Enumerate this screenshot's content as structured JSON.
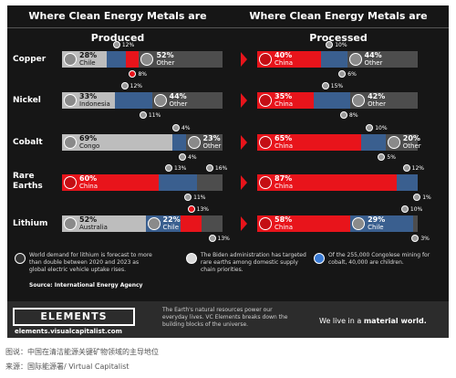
{
  "headers": {
    "produced": "Where Clean Energy Metals are Produced",
    "processed": "Where Clean Energy Metals are Processed"
  },
  "colors": {
    "china": "#e8141b",
    "other": "#4d4d4d",
    "highlight": "#bdbdbd",
    "blue": "#3a5f8f",
    "background": "#161616"
  },
  "chart_data": [
    {
      "type": "bar",
      "orientation": "horizontal",
      "stacked": true,
      "title": "Where Clean Energy Metals are Produced",
      "categories": [
        "Copper",
        "Nickel",
        "Cobalt",
        "Rare Earths",
        "Lithium"
      ],
      "rows": [
        {
          "metal": "Copper",
          "segments": [
            {
              "country": "Chile",
              "pct": 28,
              "fill": "gray",
              "flag": "chile-flag"
            },
            {
              "country": "Peru",
              "pct": 12,
              "fill": "blue",
              "flag": "peru-flag"
            },
            {
              "country": "China",
              "pct": 8,
              "fill": "red",
              "flag": "china-flag"
            },
            {
              "country": "Other",
              "pct": 52,
              "fill": "dark",
              "flag": "other-icon"
            }
          ]
        },
        {
          "metal": "Nickel",
          "segments": [
            {
              "country": "Indonesia",
              "pct": 33,
              "fill": "gray",
              "flag": "indonesia-flag"
            },
            {
              "country": "Philippines",
              "pct": 12,
              "fill": "blue",
              "flag": "philippines-flag"
            },
            {
              "country": "Russia",
              "pct": 11,
              "fill": "blue",
              "flag": "russia-flag"
            },
            {
              "country": "Other",
              "pct": 44,
              "fill": "dark",
              "flag": "other-icon"
            }
          ]
        },
        {
          "metal": "Cobalt",
          "segments": [
            {
              "country": "Congo",
              "pct": 69,
              "fill": "gray",
              "flag": "congo-flag"
            },
            {
              "country": "Russia",
              "pct": 4,
              "fill": "blue",
              "flag": "russia-flag"
            },
            {
              "country": "Australia",
              "pct": 4,
              "fill": "blue",
              "flag": "australia-flag"
            },
            {
              "country": "Other",
              "pct": 23,
              "fill": "dark",
              "flag": "other-icon"
            }
          ]
        },
        {
          "metal": "Rare Earths",
          "segments": [
            {
              "country": "China",
              "pct": 60,
              "fill": "red",
              "flag": "china-flag"
            },
            {
              "country": "U.S.",
              "pct": 13,
              "fill": "blue",
              "flag": "us-flag"
            },
            {
              "country": "Myanmar",
              "pct": 11,
              "fill": "blue",
              "flag": "myanmar-flag"
            },
            {
              "country": "Other",
              "pct": 16,
              "fill": "dark",
              "flag": "other-icon"
            }
          ]
        },
        {
          "metal": "Lithium",
          "segments": [
            {
              "country": "Australia",
              "pct": 52,
              "fill": "gray",
              "flag": "australia-flag"
            },
            {
              "country": "Chile",
              "pct": 22,
              "fill": "blue",
              "flag": "chile-flag"
            },
            {
              "country": "China",
              "pct": 13,
              "fill": "red",
              "flag": "china-flag"
            },
            {
              "country": "Other",
              "pct": 13,
              "fill": "dark",
              "flag": "other-icon"
            }
          ]
        }
      ]
    },
    {
      "type": "bar",
      "orientation": "horizontal",
      "stacked": true,
      "title": "Where Clean Energy Metals are Processed",
      "categories": [
        "Copper",
        "Nickel",
        "Cobalt",
        "Rare Earths",
        "Lithium"
      ],
      "rows": [
        {
          "metal": "Copper",
          "segments": [
            {
              "country": "China",
              "pct": 40,
              "fill": "red",
              "flag": "china-flag"
            },
            {
              "country": "Chile",
              "pct": 10,
              "fill": "blue",
              "flag": "chile-flag"
            },
            {
              "country": "Japan",
              "pct": 6,
              "fill": "blue",
              "flag": "japan-flag"
            },
            {
              "country": "Other",
              "pct": 44,
              "fill": "dark",
              "flag": "other-icon"
            }
          ]
        },
        {
          "metal": "Nickel",
          "segments": [
            {
              "country": "China",
              "pct": 35,
              "fill": "red",
              "flag": "china-flag"
            },
            {
              "country": "Indonesia",
              "pct": 15,
              "fill": "blue",
              "flag": "indonesia-flag"
            },
            {
              "country": "Japan",
              "pct": 8,
              "fill": "blue",
              "flag": "japan-flag"
            },
            {
              "country": "Other",
              "pct": 42,
              "fill": "dark",
              "flag": "other-icon"
            }
          ]
        },
        {
          "metal": "Cobalt",
          "segments": [
            {
              "country": "China",
              "pct": 65,
              "fill": "red",
              "flag": "china-flag"
            },
            {
              "country": "Finland",
              "pct": 10,
              "fill": "blue",
              "flag": "finland-flag"
            },
            {
              "country": "Belgium",
              "pct": 5,
              "fill": "blue",
              "flag": "belgium-flag"
            },
            {
              "country": "Other",
              "pct": 20,
              "fill": "dark",
              "flag": "other-icon"
            }
          ]
        },
        {
          "metal": "Rare Earths",
          "segments": [
            {
              "country": "China",
              "pct": 87,
              "fill": "red",
              "flag": "china-flag"
            },
            {
              "country": "Malaysia",
              "pct": 12,
              "fill": "blue",
              "flag": "malaysia-flag"
            },
            {
              "country": "Estonia",
              "pct": 1,
              "fill": "blue",
              "flag": "estonia-flag"
            }
          ]
        },
        {
          "metal": "Lithium",
          "segments": [
            {
              "country": "China",
              "pct": 58,
              "fill": "red",
              "flag": "china-flag"
            },
            {
              "country": "Chile",
              "pct": 29,
              "fill": "blue",
              "flag": "chile-flag"
            },
            {
              "country": "Argentina",
              "pct": 10,
              "fill": "blue",
              "flag": "argentina-flag"
            },
            {
              "country": "Other",
              "pct": 3,
              "fill": "dark",
              "flag": "other-icon"
            }
          ]
        }
      ]
    }
  ],
  "notes": [
    {
      "text": "World demand for lithium is forecast to more than double between 2020 and 2023 as global electric vehicle uptake rises.",
      "icon": "lithium-note-icon"
    },
    {
      "text": "The Biden administration has targeted rare earths among domestic supply chain priorities.",
      "icon": "us-flag-icon"
    },
    {
      "text": "Of the 255,000 Congolese mining for cobalt, 40,000 are children.",
      "icon": "congo-flag-icon"
    }
  ],
  "source": "Source: International Energy Agency",
  "footer": {
    "brand": "ELEMENTS",
    "url": "elements.visualcapitalist.com",
    "tagline": "The Earth's natural resources power our everyday lives. VC Elements breaks down the building blocks of the universe.",
    "slogan_prefix": "We live in a ",
    "slogan_bold": "material world."
  },
  "captions": {
    "line1": "图说：中国在清洁能源关键矿物领域的主导地位",
    "line2": "来源：国际能源署/ Virtual Capitalist"
  }
}
